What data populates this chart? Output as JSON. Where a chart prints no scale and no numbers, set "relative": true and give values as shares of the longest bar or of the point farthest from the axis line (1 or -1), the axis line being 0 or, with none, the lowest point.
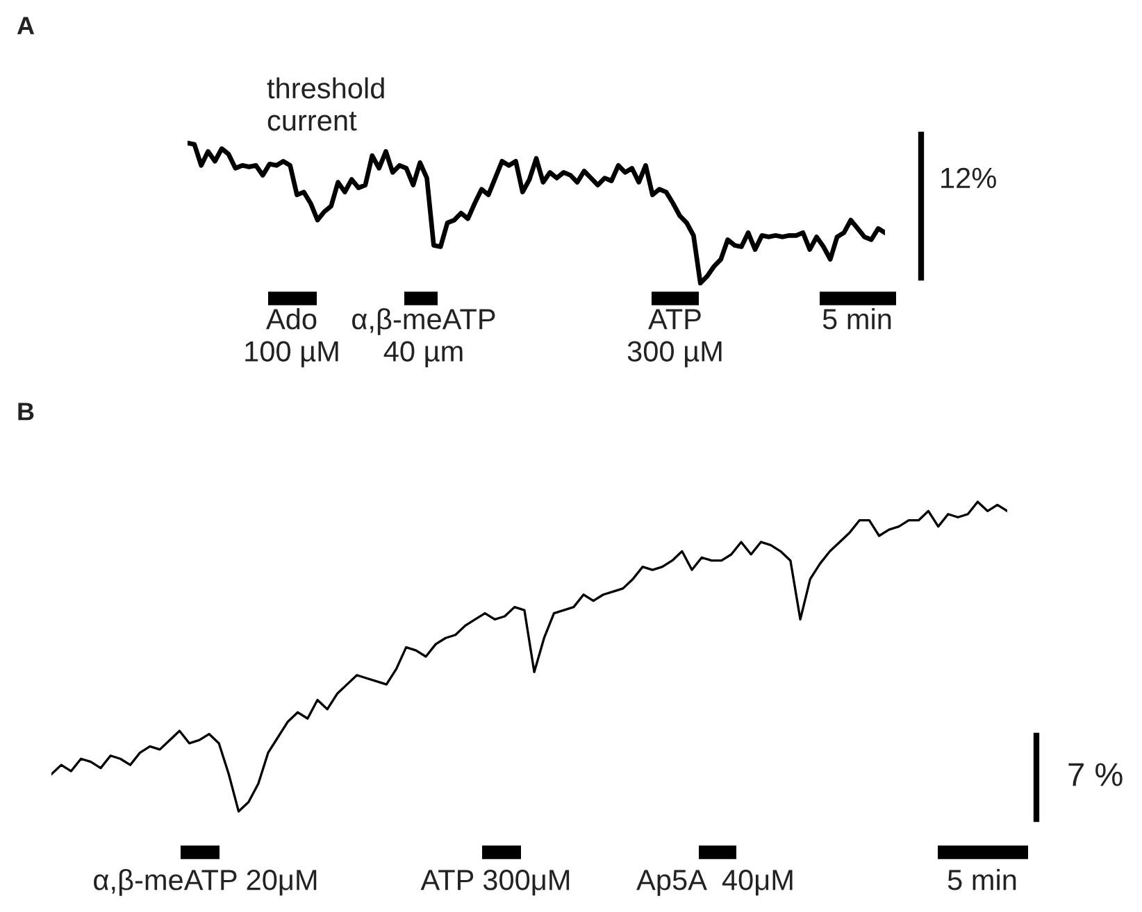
{
  "chart_data": [
    {
      "type": "line",
      "relative": true,
      "categories": [
        null,
        null,
        null,
        null,
        null,
        null,
        null,
        null,
        null,
        null,
        null,
        null,
        null,
        null,
        null,
        null,
        null,
        null,
        null,
        null,
        null,
        null,
        null,
        null,
        null,
        null,
        null,
        null,
        null,
        null,
        null,
        null,
        null,
        null,
        null,
        null,
        null,
        null,
        null,
        null,
        null,
        null,
        null,
        null,
        null,
        null,
        null,
        null,
        null,
        null,
        null,
        null,
        null,
        null,
        null,
        null,
        null,
        null,
        null,
        null,
        null,
        null,
        null,
        null,
        null,
        null,
        null,
        null,
        null,
        null,
        null,
        null,
        null,
        null,
        null,
        null,
        null,
        null,
        null,
        null,
        null,
        null,
        null,
        null,
        null,
        null,
        null,
        null,
        null,
        null,
        null,
        null,
        null,
        null,
        null,
        null,
        null,
        null,
        null,
        null,
        null,
        null,
        null
      ],
      "series": [
        {
          "color": "#000000",
          "values": [
            1,
            0.99,
            0.84,
            0.94,
            0.87,
            0.96,
            0.92,
            0.82,
            0.84,
            0.83,
            0.84,
            0.77,
            0.85,
            0.84,
            0.87,
            0.84,
            0.63,
            0.65,
            0.57,
            0.45,
            0.51,
            0.55,
            0.72,
            0.65,
            0.74,
            0.68,
            0.7,
            0.91,
            0.82,
            0.94,
            0.79,
            0.84,
            0.82,
            0.7,
            0.86,
            0.75,
            0.27,
            0.26,
            0.43,
            0.45,
            0.5,
            0.46,
            0.57,
            0.67,
            0.63,
            0.75,
            0.87,
            0.84,
            0.87,
            0.65,
            0.74,
            0.89,
            0.72,
            0.79,
            0.75,
            0.79,
            0.77,
            0.72,
            0.8,
            0.75,
            0.7,
            0.75,
            0.73,
            0.84,
            0.79,
            0.82,
            0.72,
            0.84,
            0.63,
            0.67,
            0.65,
            0.57,
            0.48,
            0.43,
            0.34,
            0,
            0.05,
            0.12,
            0.17,
            0.31,
            0.27,
            0.26,
            0.36,
            0.24,
            0.34,
            0.33,
            0.34,
            0.33,
            0.34,
            0.34,
            0.36,
            0.24,
            0.33,
            0.26,
            0.17,
            0.33,
            0.36,
            0.45,
            0.39,
            0.33,
            0.31,
            0.39,
            0.36
          ]
        }
      ],
      "annotations": [
        "A",
        "threshold\ncurrent",
        "12%",
        "Ado\n100 µM",
        "α,β-meATP\n40 µm",
        "ATP\n300 µM",
        "5 min"
      ]
    },
    {
      "type": "line",
      "relative": true,
      "categories": [
        null,
        null,
        null,
        null,
        null,
        null,
        null,
        null,
        null,
        null,
        null,
        null,
        null,
        null,
        null,
        null,
        null,
        null,
        null,
        null,
        null,
        null,
        null,
        null,
        null,
        null,
        null,
        null,
        null,
        null,
        null,
        null,
        null,
        null,
        null,
        null,
        null,
        null,
        null,
        null,
        null,
        null,
        null,
        null,
        null,
        null,
        null,
        null,
        null,
        null,
        null,
        null,
        null,
        null,
        null,
        null,
        null,
        null,
        null,
        null,
        null,
        null,
        null,
        null,
        null,
        null,
        null,
        null,
        null,
        null,
        null,
        null,
        null,
        null,
        null,
        null,
        null,
        null,
        null,
        null,
        null,
        null,
        null,
        null,
        null,
        null,
        null,
        null,
        null,
        null,
        null,
        null,
        null,
        null,
        null,
        null,
        null,
        null
      ],
      "series": [
        {
          "color": "#000000",
          "values": [
            0.12,
            0.15,
            0.13,
            0.17,
            0.16,
            0.14,
            0.18,
            0.17,
            0.15,
            0.19,
            0.21,
            0.2,
            0.23,
            0.26,
            0.22,
            0.23,
            0.25,
            0.22,
            0.12,
            0,
            0.03,
            0.09,
            0.19,
            0.24,
            0.29,
            0.32,
            0.3,
            0.36,
            0.33,
            0.38,
            0.41,
            0.44,
            0.43,
            0.42,
            0.41,
            0.46,
            0.53,
            0.52,
            0.5,
            0.54,
            0.56,
            0.57,
            0.6,
            0.62,
            0.64,
            0.62,
            0.63,
            0.66,
            0.65,
            0.45,
            0.56,
            0.64,
            0.65,
            0.66,
            0.7,
            0.68,
            0.7,
            0.71,
            0.72,
            0.75,
            0.79,
            0.78,
            0.79,
            0.81,
            0.84,
            0.78,
            0.82,
            0.81,
            0.81,
            0.83,
            0.87,
            0.83,
            0.87,
            0.86,
            0.84,
            0.81,
            0.62,
            0.75,
            0.8,
            0.84,
            0.87,
            0.9,
            0.94,
            0.94,
            0.89,
            0.91,
            0.92,
            0.94,
            0.94,
            0.97,
            0.92,
            0.96,
            0.95,
            0.96,
            1,
            0.97,
            0.99,
            0.97
          ]
        }
      ],
      "annotations": [
        "B",
        "7 %",
        "α,β-meATP 20μM",
        "ATP 300μM",
        "Ap5A  40μM",
        "5 min"
      ]
    }
  ]
}
